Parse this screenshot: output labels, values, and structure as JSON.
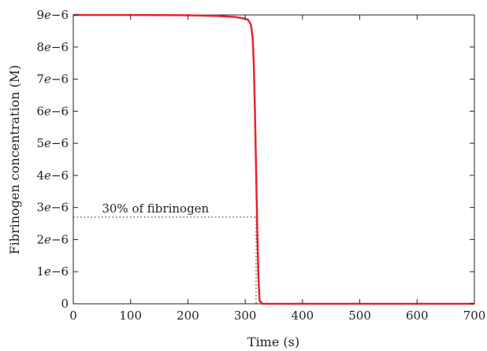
{
  "chart_data": {
    "type": "line",
    "title": "",
    "xlabel": "Time (s)",
    "ylabel": "Fibrinogen concentration (M)",
    "xlim": [
      0,
      700
    ],
    "ylim": [
      0,
      9e-06
    ],
    "grid": false,
    "x_ticks": [
      {
        "value": 0,
        "label": "0"
      },
      {
        "value": 100,
        "label": "100"
      },
      {
        "value": 200,
        "label": "200"
      },
      {
        "value": 300,
        "label": "300"
      },
      {
        "value": 400,
        "label": "400"
      },
      {
        "value": 500,
        "label": "500"
      },
      {
        "value": 600,
        "label": "600"
      },
      {
        "value": 700,
        "label": "700"
      }
    ],
    "y_ticks": [
      {
        "value": 0,
        "mant": "0",
        "exp": ""
      },
      {
        "value": 1e-06,
        "mant": "1",
        "exp": "−6"
      },
      {
        "value": 2e-06,
        "mant": "2",
        "exp": "−6"
      },
      {
        "value": 3e-06,
        "mant": "3",
        "exp": "−6"
      },
      {
        "value": 4e-06,
        "mant": "4",
        "exp": "−6"
      },
      {
        "value": 5e-06,
        "mant": "5",
        "exp": "−6"
      },
      {
        "value": 6e-06,
        "mant": "6",
        "exp": "−6"
      },
      {
        "value": 7e-06,
        "mant": "7",
        "exp": "−6"
      },
      {
        "value": 8e-06,
        "mant": "8",
        "exp": "−6"
      },
      {
        "value": 9e-06,
        "mant": "9",
        "exp": "−6"
      }
    ],
    "series": [
      {
        "color": "#e8242b",
        "x": [
          0,
          100,
          200,
          250,
          280,
          295,
          305,
          310,
          313,
          315,
          317,
          319,
          321,
          323,
          325,
          330,
          400,
          500,
          600,
          700
        ],
        "y": [
          9e-06,
          9e-06,
          8.99e-06,
          8.97e-06,
          8.94e-06,
          8.9e-06,
          8.85e-06,
          8.7e-06,
          8.3e-06,
          7.5e-06,
          6e-06,
          4.2e-06,
          2.4e-06,
          9e-07,
          1e-07,
          0,
          0,
          0,
          0,
          0
        ]
      }
    ],
    "annotations": [
      {
        "text": "30% of fibrinogen",
        "y": 2.7e-06,
        "x_end": 319
      }
    ]
  }
}
